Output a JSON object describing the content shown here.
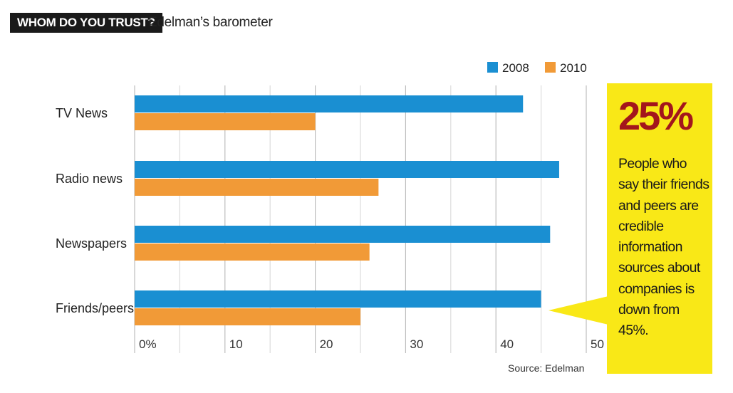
{
  "header": {
    "tag": "WHOM DO YOU TRUST?",
    "subtitle": "Edelman’s barometer"
  },
  "callout": {
    "big_number": "25%",
    "text": "People who say their friends and peers are credible information sources about companies is down from 45%."
  },
  "source": "Source: Edelman",
  "colors": {
    "series_2008": "#1a8fd2",
    "series_2010": "#f19a37",
    "grid": "#dcdcdc",
    "callout_bg": "#f9e817",
    "big_number": "#a3161c"
  },
  "chart_data": {
    "type": "bar",
    "orientation": "horizontal",
    "title": "Edelman’s barometer",
    "categories": [
      "TV News",
      "Radio news",
      "Newspapers",
      "Friends/peers"
    ],
    "series": [
      {
        "name": "2008",
        "values": [
          43,
          47,
          46,
          45
        ]
      },
      {
        "name": "2010",
        "values": [
          20,
          27,
          26,
          25
        ]
      }
    ],
    "xlim": [
      0,
      50
    ],
    "xticks": [
      0,
      10,
      20,
      30,
      40,
      50
    ],
    "tick_labels": [
      "0%",
      "10",
      "20",
      "30",
      "40",
      "50"
    ],
    "legend_position": "top-right",
    "grid": true
  }
}
